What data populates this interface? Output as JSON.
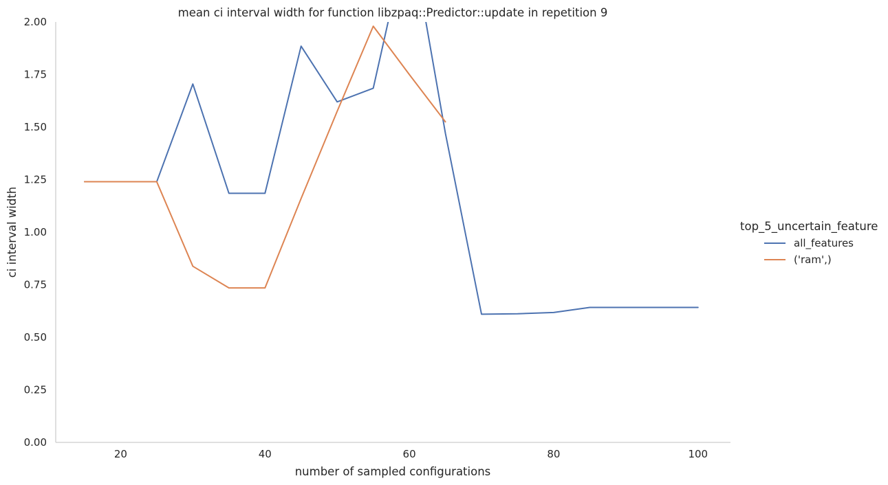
{
  "chart_data": {
    "type": "line",
    "title": "mean ci interval width for function libzpaq::Predictor::update in repetition 9",
    "xlabel": "number of sampled configurations",
    "ylabel": "ci interval width",
    "xlim": [
      11,
      104.5
    ],
    "ylim": [
      0,
      2.0
    ],
    "xticks": [
      20,
      40,
      60,
      80,
      100
    ],
    "yticks": [
      0.0,
      0.25,
      0.5,
      0.75,
      1.0,
      1.25,
      1.5,
      1.75,
      2.0
    ],
    "xtick_labels": [
      "20",
      "40",
      "60",
      "80",
      "100"
    ],
    "ytick_labels": [
      "0.00",
      "0.25",
      "0.50",
      "0.75",
      "1.00",
      "1.25",
      "1.50",
      "1.75",
      "2.00"
    ],
    "grid": false,
    "legend_placement": "right",
    "legend_title": "top_5_uncertain_feature",
    "series": [
      {
        "name": "all_features",
        "color": "#4c72b0",
        "x": [
          15,
          20,
          25,
          30,
          35,
          40,
          45,
          50,
          55,
          60,
          65,
          70,
          75,
          80,
          85,
          90,
          95,
          100
        ],
        "y": [
          1.24,
          1.24,
          1.24,
          1.705,
          1.185,
          1.185,
          1.885,
          1.62,
          1.685,
          2.45,
          1.47,
          0.61,
          0.612,
          0.618,
          0.642,
          0.642,
          0.642,
          0.642
        ]
      },
      {
        "name": "('ram',)",
        "color": "#dd8452",
        "x": [
          15,
          20,
          25,
          30,
          35,
          40,
          45,
          50,
          55,
          60,
          65
        ],
        "y": [
          1.24,
          1.24,
          1.24,
          0.838,
          0.735,
          0.735,
          1.16,
          1.575,
          1.98,
          1.75,
          1.525
        ]
      }
    ]
  }
}
